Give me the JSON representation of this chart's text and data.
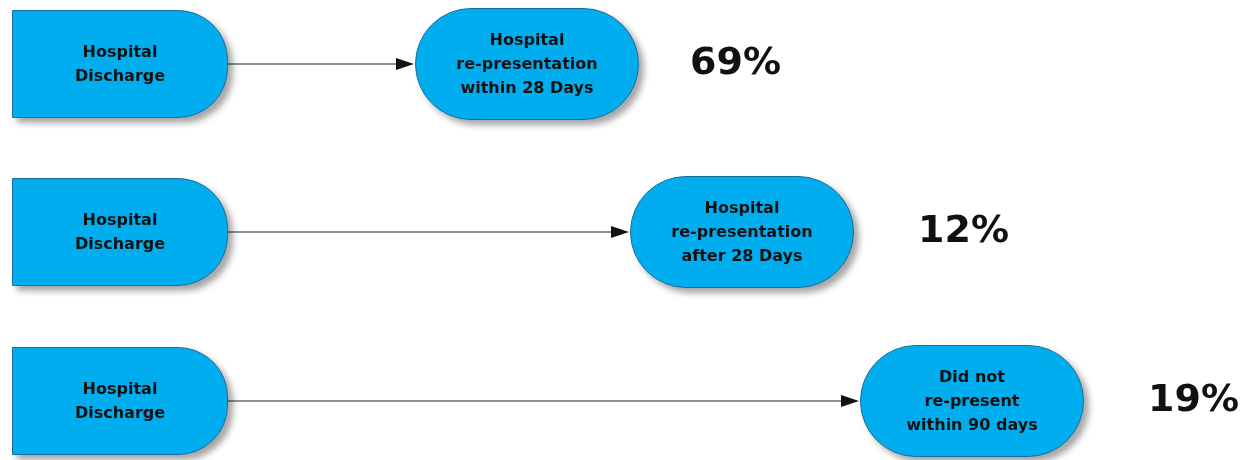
{
  "chart_data": {
    "type": "other",
    "categories": [
      "Hospital re-presentation within 28 Days",
      "Hospital re-presentation after 28 Days",
      "Did not re-present within 90 days"
    ],
    "values": [
      69,
      12,
      19
    ],
    "value_labels": [
      "69%",
      "12%",
      "19%"
    ],
    "annotations": [
      "Hospital Discharge",
      "Hospital Discharge",
      "Hospital Discharge"
    ],
    "color": "#00aeef"
  }
}
